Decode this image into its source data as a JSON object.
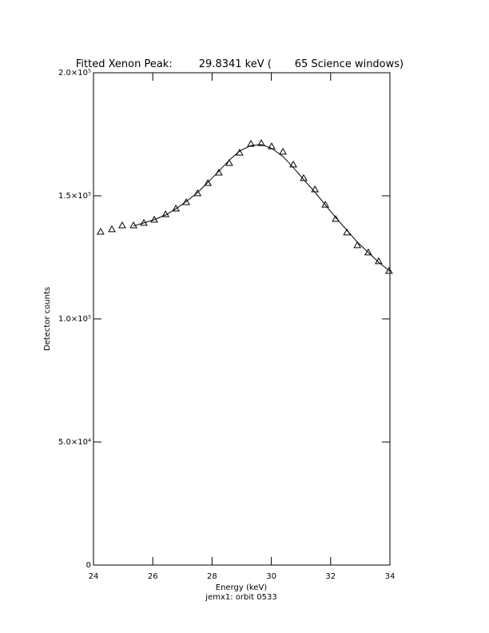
{
  "chart_data": {
    "type": "scatter",
    "title": "Fitted Xenon Peak:        29.8341 keV (       65 Science windows)",
    "x_label": "Energy (keV)",
    "y_label": "Detector counts",
    "footnote": "jemx1: orbit 0533",
    "xlim": [
      24,
      34
    ],
    "xticks": [
      24,
      26,
      28,
      30,
      32,
      34
    ],
    "ylim": [
      0,
      200000
    ],
    "yticks": [
      {
        "value": 0,
        "label": "0"
      },
      {
        "value": 50000,
        "label": "5.0×10⁴"
      },
      {
        "value": 100000,
        "label": "1.0×10⁵"
      },
      {
        "value": 150000,
        "label": "1.5×10⁵"
      },
      {
        "value": 200000,
        "label": "2.0×10⁵"
      }
    ],
    "series": [
      {
        "name": "data",
        "marker": "triangle",
        "color": "#000000",
        "x": [
          24.24,
          24.62,
          24.97,
          25.35,
          25.7,
          26.05,
          26.43,
          26.78,
          27.13,
          27.51,
          27.86,
          28.23,
          28.58,
          28.93,
          29.31,
          29.66,
          30.01,
          30.39,
          30.74,
          31.09,
          31.47,
          31.82,
          32.17,
          32.55,
          32.9,
          33.27,
          33.62,
          33.97
        ],
        "values": [
          135400,
          136400,
          138000,
          138000,
          139000,
          140300,
          142500,
          144800,
          147400,
          151000,
          155200,
          159400,
          163300,
          167500,
          171100,
          171400,
          170100,
          167900,
          162700,
          157200,
          152600,
          146400,
          140600,
          135100,
          129900,
          127000,
          123400,
          119500
        ]
      },
      {
        "name": "fit",
        "marker": "line",
        "color": "#000000",
        "x": [
          25.35,
          25.7,
          26.05,
          26.43,
          26.78,
          27.13,
          27.51,
          27.86,
          28.23,
          28.58,
          28.93,
          29.31,
          29.66,
          30.01,
          30.39,
          30.74,
          31.09,
          31.47,
          31.82,
          32.17,
          32.55,
          32.9,
          33.27,
          33.62,
          34.0
        ],
        "values": [
          137800,
          139000,
          140300,
          142200,
          144700,
          147700,
          151300,
          155500,
          160000,
          164500,
          168200,
          170400,
          170800,
          169300,
          166000,
          161500,
          156600,
          151500,
          146300,
          141200,
          136000,
          131200,
          127000,
          123000,
          119400
        ]
      }
    ]
  }
}
